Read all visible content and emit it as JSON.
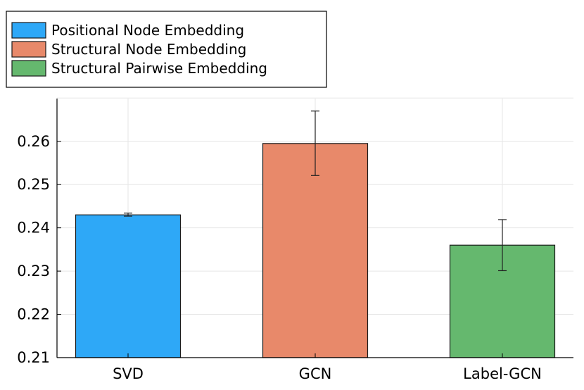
{
  "chart_data": {
    "type": "bar",
    "title": "",
    "xlabel": "",
    "ylabel": "",
    "categories": [
      "SVD",
      "GCN",
      "Label-GCN"
    ],
    "series": [
      {
        "name": "Positional Node Embedding",
        "category": "SVD",
        "value": 0.243,
        "error_low": 0.2427,
        "error_high": 0.2434,
        "color": "#2EA8F7"
      },
      {
        "name": "Structural Node Embedding",
        "category": "GCN",
        "value": 0.2595,
        "error_low": 0.2521,
        "error_high": 0.267,
        "color": "#E8896A"
      },
      {
        "name": "Structural Pairwise Embedding",
        "category": "Label-GCN",
        "value": 0.236,
        "error_low": 0.2301,
        "error_high": 0.2419,
        "color": "#65B86E"
      }
    ],
    "ylim": [
      0.21,
      0.27
    ],
    "yticks": [
      0.21,
      0.22,
      0.23,
      0.24,
      0.25,
      0.26
    ],
    "ytick_labels": [
      "0.21",
      "0.22",
      "0.23",
      "0.24",
      "0.25",
      "0.26"
    ],
    "grid": true,
    "legend_position": "top-left, outside plot"
  }
}
